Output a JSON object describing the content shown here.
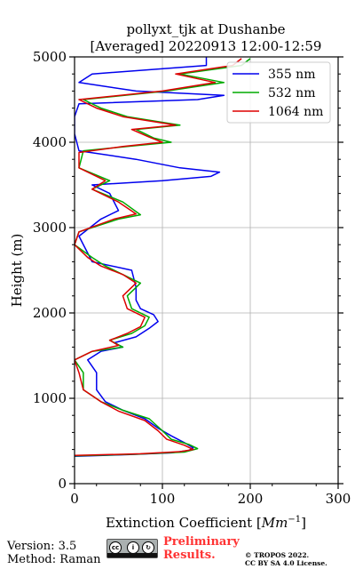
{
  "chart_data": {
    "type": "line",
    "title_line1": "pollyxt_tjk at Dushanbe",
    "title_line2": "[Averaged] 20220913 12:00-12:59",
    "xlabel": "Extinction Coefficient [",
    "xlabel_unit": "Mm",
    "xlabel_exp": "−1",
    "xlabel_close": "]",
    "ylabel": "Height (m)",
    "xlim": [
      0,
      300
    ],
    "ylim": [
      0,
      5000
    ],
    "x_ticks": [
      "0",
      "100",
      "200",
      "300"
    ],
    "y_ticks": [
      "0",
      "1000",
      "2000",
      "3000",
      "4000",
      "5000"
    ],
    "grid": true,
    "legend_position": "top-right",
    "series": [
      {
        "name": "355 nm",
        "color": "#0000ee",
        "points": [
          [
            0,
            320
          ],
          [
            60,
            340
          ],
          [
            110,
            360
          ],
          [
            130,
            390
          ],
          [
            135,
            420
          ],
          [
            125,
            480
          ],
          [
            110,
            560
          ],
          [
            95,
            650
          ],
          [
            80,
            760
          ],
          [
            55,
            860
          ],
          [
            35,
            960
          ],
          [
            25,
            1100
          ],
          [
            25,
            1300
          ],
          [
            15,
            1450
          ],
          [
            30,
            1550
          ],
          [
            55,
            1600
          ],
          [
            45,
            1650
          ],
          [
            70,
            1720
          ],
          [
            85,
            1820
          ],
          [
            95,
            1900
          ],
          [
            90,
            1980
          ],
          [
            75,
            2050
          ],
          [
            70,
            2150
          ],
          [
            70,
            2300
          ],
          [
            65,
            2500
          ],
          [
            20,
            2600
          ],
          [
            5,
            2900
          ],
          [
            30,
            3100
          ],
          [
            50,
            3200
          ],
          [
            40,
            3400
          ],
          [
            20,
            3500
          ],
          [
            100,
            3550
          ],
          [
            155,
            3600
          ],
          [
            165,
            3650
          ],
          [
            120,
            3700
          ],
          [
            70,
            3800
          ],
          [
            5,
            3900
          ],
          [
            0,
            4100
          ],
          [
            0,
            4300
          ],
          [
            5,
            4450
          ],
          [
            140,
            4500
          ],
          [
            170,
            4550
          ],
          [
            70,
            4600
          ],
          [
            5,
            4700
          ],
          [
            20,
            4800
          ],
          [
            150,
            4900
          ],
          [
            150,
            5000
          ]
        ]
      },
      {
        "name": "532 nm",
        "color": "#00aa00",
        "points": [
          [
            0,
            325
          ],
          [
            70,
            345
          ],
          [
            125,
            370
          ],
          [
            140,
            410
          ],
          [
            130,
            460
          ],
          [
            110,
            520
          ],
          [
            100,
            620
          ],
          [
            85,
            760
          ],
          [
            55,
            860
          ],
          [
            30,
            960
          ],
          [
            10,
            1100
          ],
          [
            10,
            1300
          ],
          [
            0,
            1450
          ],
          [
            20,
            1550
          ],
          [
            55,
            1600
          ],
          [
            40,
            1680
          ],
          [
            65,
            1760
          ],
          [
            80,
            1850
          ],
          [
            85,
            1950
          ],
          [
            65,
            2050
          ],
          [
            60,
            2200
          ],
          [
            75,
            2350
          ],
          [
            55,
            2450
          ],
          [
            35,
            2550
          ],
          [
            20,
            2650
          ],
          [
            0,
            2800
          ],
          [
            5,
            2950
          ],
          [
            50,
            3100
          ],
          [
            75,
            3150
          ],
          [
            55,
            3300
          ],
          [
            20,
            3450
          ],
          [
            40,
            3550
          ],
          [
            5,
            3700
          ],
          [
            10,
            3900
          ],
          [
            60,
            3950
          ],
          [
            110,
            4000
          ],
          [
            90,
            4050
          ],
          [
            70,
            4150
          ],
          [
            120,
            4200
          ],
          [
            60,
            4300
          ],
          [
            30,
            4400
          ],
          [
            10,
            4500
          ],
          [
            105,
            4600
          ],
          [
            170,
            4700
          ],
          [
            120,
            4800
          ],
          [
            190,
            4900
          ],
          [
            200,
            4980
          ]
        ]
      },
      {
        "name": "1064 nm",
        "color": "#dd0000",
        "points": [
          [
            0,
            330
          ],
          [
            75,
            350
          ],
          [
            120,
            375
          ],
          [
            135,
            400
          ],
          [
            125,
            450
          ],
          [
            105,
            520
          ],
          [
            95,
            620
          ],
          [
            80,
            740
          ],
          [
            50,
            850
          ],
          [
            30,
            960
          ],
          [
            10,
            1100
          ],
          [
            5,
            1300
          ],
          [
            0,
            1450
          ],
          [
            20,
            1550
          ],
          [
            50,
            1620
          ],
          [
            40,
            1680
          ],
          [
            60,
            1760
          ],
          [
            75,
            1840
          ],
          [
            80,
            1950
          ],
          [
            60,
            2050
          ],
          [
            55,
            2200
          ],
          [
            70,
            2350
          ],
          [
            55,
            2450
          ],
          [
            30,
            2550
          ],
          [
            15,
            2650
          ],
          [
            0,
            2800
          ],
          [
            5,
            2950
          ],
          [
            45,
            3100
          ],
          [
            70,
            3160
          ],
          [
            50,
            3300
          ],
          [
            20,
            3450
          ],
          [
            35,
            3550
          ],
          [
            5,
            3700
          ],
          [
            5,
            3880
          ],
          [
            55,
            3950
          ],
          [
            100,
            4000
          ],
          [
            85,
            4060
          ],
          [
            65,
            4150
          ],
          [
            115,
            4200
          ],
          [
            55,
            4300
          ],
          [
            25,
            4400
          ],
          [
            5,
            4500
          ],
          [
            100,
            4600
          ],
          [
            160,
            4700
          ],
          [
            115,
            4800
          ],
          [
            180,
            4900
          ],
          [
            190,
            4980
          ]
        ]
      }
    ]
  },
  "footer": {
    "version": "Version: 3.5",
    "method": "Method: Raman",
    "preliminary_line1": "Preliminary",
    "preliminary_line2": "Results.",
    "copyright_line1": "© TROPOS 2022.",
    "copyright_line2": "CC BY SA 4.0 License."
  },
  "license_badge_icons": [
    "cc-icon",
    "by-icon",
    "sa-icon"
  ],
  "colors": {
    "grid": "#b0b0b0",
    "preliminary": "#ff3333"
  }
}
